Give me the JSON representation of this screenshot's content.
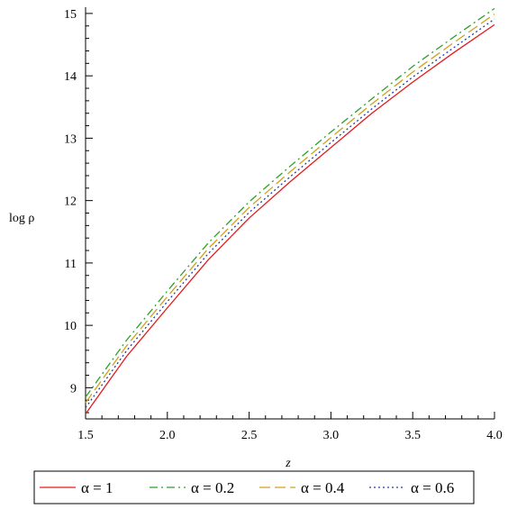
{
  "chart_data": {
    "type": "line",
    "title": "",
    "xlabel": "z",
    "ylabel": "log ρ",
    "xlim": [
      1.5,
      4.0
    ],
    "ylim": [
      8.5,
      15.1
    ],
    "x_ticks": [
      "1.5",
      "2.0",
      "2.5",
      "3.0",
      "3.5",
      "4.0"
    ],
    "y_ticks": [
      "9",
      "10",
      "11",
      "12",
      "13",
      "14",
      "15"
    ],
    "grid": false,
    "legend_position": "bottom",
    "x": [
      1.5,
      1.75,
      2.0,
      2.25,
      2.5,
      2.75,
      3.0,
      3.25,
      3.5,
      3.75,
      4.0
    ],
    "series": [
      {
        "name": "α = 1",
        "color": "#e41a1c",
        "dash": "solid",
        "values": [
          8.58,
          9.5,
          10.28,
          11.05,
          11.72,
          12.3,
          12.85,
          13.4,
          13.9,
          14.37,
          14.82
        ]
      },
      {
        "name": "α = 0.2",
        "color": "#2ca02c",
        "dash": "dashdot",
        "values": [
          8.85,
          9.76,
          10.55,
          11.32,
          11.98,
          12.55,
          13.1,
          13.63,
          14.15,
          14.62,
          15.08
        ]
      },
      {
        "name": "α = 0.4",
        "color": "#d4a017",
        "dash": "longdash",
        "values": [
          8.76,
          9.67,
          10.46,
          11.23,
          11.89,
          12.46,
          13.01,
          13.55,
          14.06,
          14.53,
          14.99
        ]
      },
      {
        "name": "α = 0.6",
        "color": "#1f3fa8",
        "dash": "dotted",
        "values": [
          8.68,
          9.59,
          10.38,
          11.15,
          11.81,
          12.38,
          12.93,
          13.47,
          13.98,
          14.45,
          14.91
        ]
      }
    ]
  }
}
